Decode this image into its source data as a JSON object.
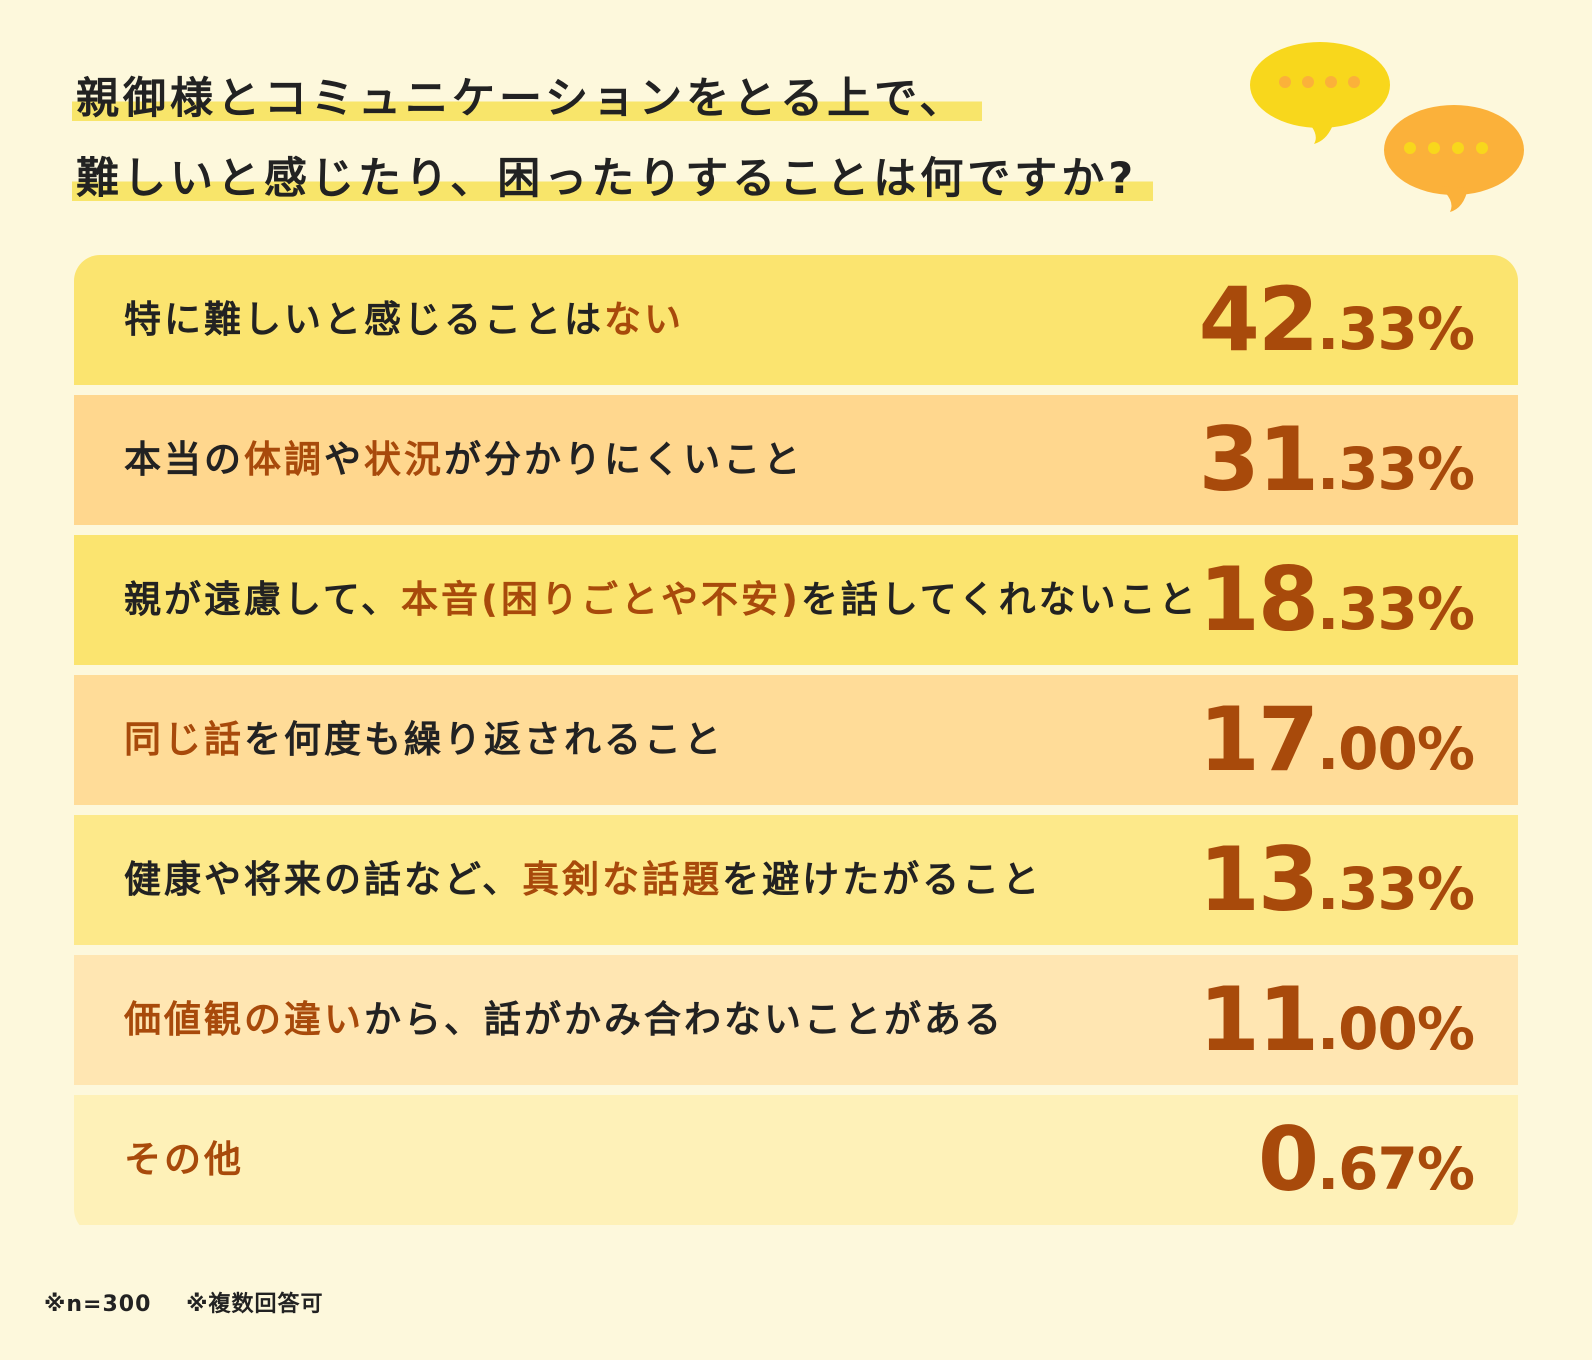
{
  "title": {
    "line1": "親御様とコミュニケーションをとる上で、",
    "line2": "難しいと感じたり、困ったりすることは何ですか?"
  },
  "colors": {
    "background": "#fdf8dc",
    "row_yellow": "#fbe46f",
    "row_orange": "#ffd78e",
    "accent": "#a84a0b",
    "bubble_yellow": "#f8d71c",
    "bubble_orange": "#fbb13a"
  },
  "icons": [
    "speech-bubble-yellow-icon",
    "speech-bubble-orange-icon"
  ],
  "chart_data": {
    "type": "table",
    "unit": "%",
    "rows": [
      {
        "label_parts": [
          {
            "text": "特に難しいと感じることは",
            "emphasis": false
          },
          {
            "text": "ない",
            "emphasis": true
          }
        ],
        "value": 42.33,
        "int": "42",
        "dec": ".33%"
      },
      {
        "label_parts": [
          {
            "text": "本当の",
            "emphasis": false
          },
          {
            "text": "体調",
            "emphasis": true
          },
          {
            "text": "や",
            "emphasis": false
          },
          {
            "text": "状況",
            "emphasis": true
          },
          {
            "text": "が分かりにくいこと",
            "emphasis": false
          }
        ],
        "value": 31.33,
        "int": "31",
        "dec": ".33%"
      },
      {
        "label_parts": [
          {
            "text": "親が遠慮して、",
            "emphasis": false
          },
          {
            "text": "本音(困りごとや不安)",
            "emphasis": true
          },
          {
            "text": "を話してくれないこと",
            "emphasis": false
          }
        ],
        "value": 18.33,
        "int": "18",
        "dec": ".33%"
      },
      {
        "label_parts": [
          {
            "text": "同じ話",
            "emphasis": true
          },
          {
            "text": "を何度も繰り返されること",
            "emphasis": false
          }
        ],
        "value": 17.0,
        "int": "17",
        "dec": ".00%"
      },
      {
        "label_parts": [
          {
            "text": "健康や将来の話など、",
            "emphasis": false
          },
          {
            "text": "真剣な話題",
            "emphasis": true
          },
          {
            "text": "を避けたがること",
            "emphasis": false
          }
        ],
        "value": 13.33,
        "int": "13",
        "dec": ".33%"
      },
      {
        "label_parts": [
          {
            "text": "価値観の違い",
            "emphasis": true
          },
          {
            "text": "から、話がかみ合わないことがある",
            "emphasis": false
          }
        ],
        "value": 11.0,
        "int": "11",
        "dec": ".00%"
      },
      {
        "label_parts": [
          {
            "text": "その他",
            "emphasis": true
          }
        ],
        "value": 0.67,
        "int": "0",
        "dec": ".67%"
      }
    ]
  },
  "footnote": {
    "sample": "※n=300",
    "multiple": "※複数回答可"
  }
}
